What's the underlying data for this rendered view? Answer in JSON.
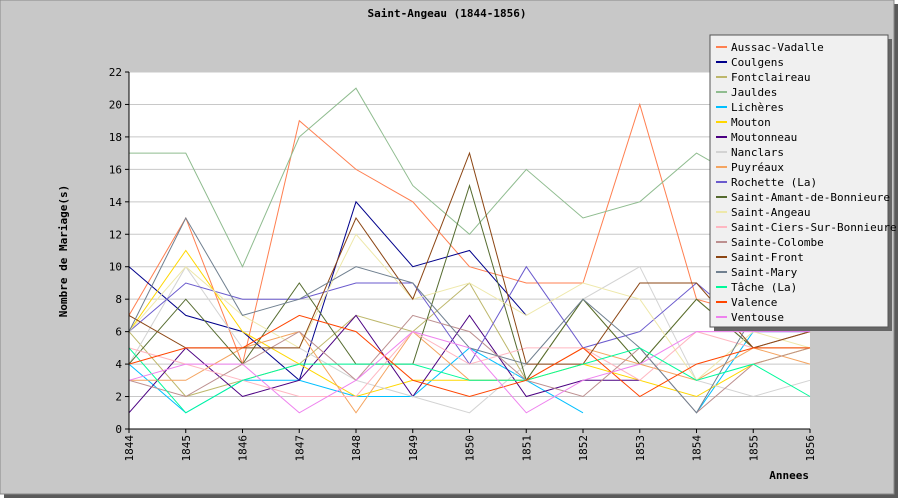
{
  "chart_data": {
    "type": "line",
    "title": "Saint-Angeau (1844-1856)",
    "xlabel": "Annees",
    "ylabel": "Nombre de Mariage(s)",
    "x": [
      "1844",
      "1845",
      "1846",
      "1847",
      "1848",
      "1849",
      "1850",
      "1851",
      "1852",
      "1853",
      "1854",
      "1855",
      "1856"
    ],
    "ylim": [
      0,
      22
    ],
    "yticks": [
      0,
      2,
      4,
      6,
      8,
      10,
      12,
      14,
      16,
      18,
      20,
      22
    ],
    "grid": true,
    "legend_position": "top-right",
    "series": [
      {
        "name": "Aussac-Vadalle",
        "color": "#ff7f50",
        "values": [
          7,
          13,
          4,
          19,
          16,
          14,
          10,
          9,
          9,
          20,
          8,
          7,
          6
        ]
      },
      {
        "name": "Coulgens",
        "color": "#00008b",
        "values": [
          10,
          7,
          6,
          3,
          14,
          10,
          11,
          7,
          null,
          null,
          null,
          null,
          null
        ]
      },
      {
        "name": "Fontclaireau",
        "color": "#bdb76b",
        "values": [
          6,
          2,
          3,
          4,
          7,
          6,
          9,
          3,
          8,
          4,
          8,
          5,
          5
        ]
      },
      {
        "name": "Jauldes",
        "color": "#8fbc8f",
        "values": [
          17,
          17,
          10,
          18,
          21,
          15,
          12,
          16,
          13,
          14,
          17,
          15,
          16
        ]
      },
      {
        "name": "Lichères",
        "color": "#00bfff",
        "values": [
          4,
          1,
          3,
          3,
          2,
          2,
          5,
          3,
          1,
          null,
          1,
          6,
          6
        ]
      },
      {
        "name": "Mouton",
        "color": "#ffd700",
        "values": [
          6,
          11,
          6,
          4,
          2,
          3,
          3,
          3,
          4,
          3,
          2,
          4,
          5
        ]
      },
      {
        "name": "Moutonneau",
        "color": "#4b0082",
        "values": [
          1,
          5,
          2,
          3,
          7,
          2,
          7,
          2,
          3,
          3,
          null,
          null,
          null
        ]
      },
      {
        "name": "Nanclars",
        "color": "#d3d3d3",
        "values": [
          4,
          10,
          5,
          5,
          3,
          2,
          1,
          4,
          8,
          10,
          3,
          2,
          3
        ]
      },
      {
        "name": "Puyréaux",
        "color": "#f4a460",
        "values": [
          3,
          3,
          5,
          6,
          1,
          6,
          3,
          3,
          5,
          4,
          3,
          5,
          4
        ]
      },
      {
        "name": "Rochette (La)",
        "color": "#6a5acd",
        "values": [
          6,
          9,
          8,
          8,
          9,
          9,
          4,
          10,
          5,
          6,
          9,
          6,
          6
        ]
      },
      {
        "name": "Saint-Amant-de-Bonnieure",
        "color": "#556b2f",
        "values": [
          4,
          8,
          4,
          9,
          4,
          4,
          15,
          3,
          8,
          4,
          8,
          5,
          6
        ]
      },
      {
        "name": "Saint-Angeau",
        "color": "#eee8aa",
        "values": [
          6,
          10,
          7,
          5,
          12,
          8,
          9,
          7,
          9,
          8,
          3,
          6,
          5
        ]
      },
      {
        "name": "Saint-Ciers-Sur-Bonnieure",
        "color": "#ffb6c1",
        "values": [
          5,
          4,
          3,
          2,
          2,
          6,
          4,
          5,
          5,
          3,
          6,
          5,
          6
        ]
      },
      {
        "name": "Sainte-Colombe",
        "color": "#bc8f8f",
        "values": [
          3,
          2,
          4,
          6,
          3,
          7,
          6,
          3,
          2,
          5,
          1,
          4,
          5
        ]
      },
      {
        "name": "Saint-Front",
        "color": "#8b4513",
        "values": [
          7,
          5,
          5,
          5,
          13,
          8,
          17,
          4,
          4,
          9,
          9,
          5,
          6
        ]
      },
      {
        "name": "Saint-Mary",
        "color": "#708090",
        "values": [
          6,
          13,
          7,
          8,
          10,
          9,
          5,
          4,
          8,
          5,
          1,
          7,
          8
        ]
      },
      {
        "name": "Tâche (La)",
        "color": "#00fa9a",
        "values": [
          5,
          1,
          3,
          4,
          4,
          4,
          3,
          3,
          4,
          5,
          3,
          4,
          2
        ]
      },
      {
        "name": "Valence",
        "color": "#ff4500",
        "values": [
          4,
          5,
          5,
          7,
          6,
          3,
          2,
          3,
          5,
          2,
          4,
          5,
          5
        ]
      },
      {
        "name": "Ventouse",
        "color": "#ee82ee",
        "values": [
          3,
          4,
          4,
          1,
          3,
          6,
          5,
          1,
          3,
          4,
          6,
          6,
          6
        ]
      }
    ]
  }
}
